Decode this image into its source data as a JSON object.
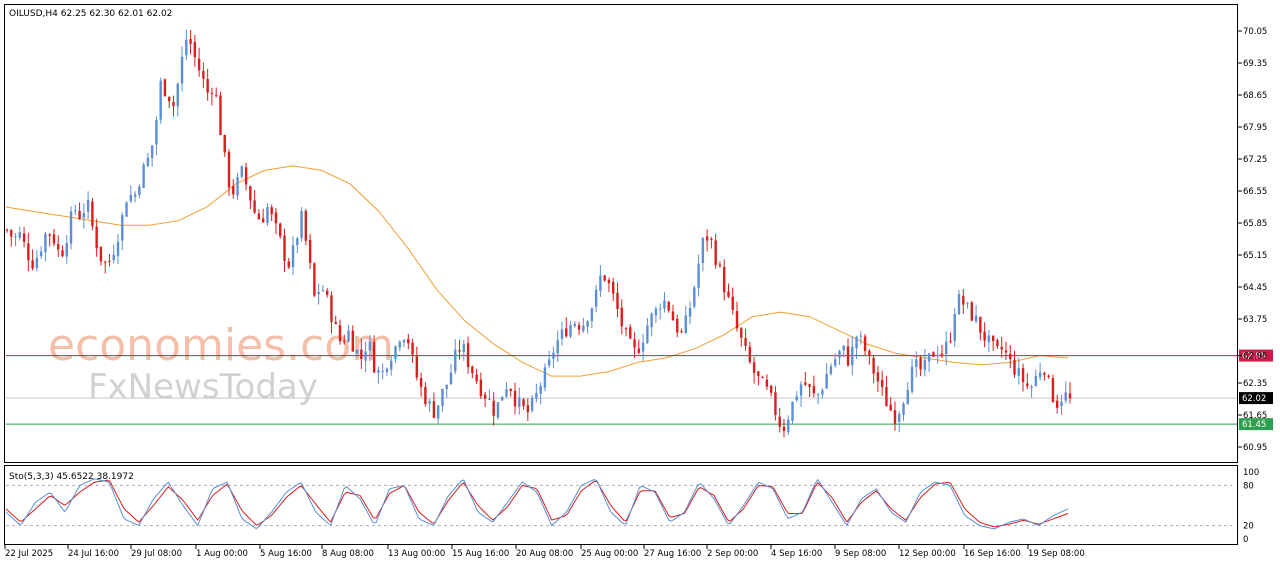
{
  "chart_data": [
    {
      "type": "candlestick",
      "symbol_header": "OILUSD,H4  62.25 62.30 62.01 62.02",
      "watermark_line1": "economies.com",
      "watermark_line2": "FxNewsToday",
      "ylim": [
        60.6,
        70.4
      ],
      "y_ticks": [
        "70.05",
        "69.35",
        "68.65",
        "67.95",
        "67.25",
        "66.55",
        "65.85",
        "65.15",
        "64.45",
        "63.75",
        "62.95",
        "62.35",
        "61.65",
        "60.95"
      ],
      "x_ticks": [
        "22 Jul 2025",
        "24 Jul 16:00",
        "29 Jul 08:00",
        "1 Aug 00:00",
        "5 Aug 16:00",
        "8 Aug 08:00",
        "13 Aug 00:00",
        "15 Aug 16:00",
        "20 Aug 08:00",
        "25 Aug 00:00",
        "27 Aug 16:00",
        "2 Sep 00:00",
        "4 Sep 16:00",
        "9 Sep 08:00",
        "12 Sep 00:00",
        "16 Sep 16:00",
        "19 Sep 08:00"
      ],
      "levels": [
        {
          "label": "62.95",
          "value": 62.95,
          "color": "#cc1a4a"
        },
        {
          "label": "62.02",
          "value": 62.02,
          "color": "#000000"
        },
        {
          "label": "61.45",
          "value": 61.45,
          "color": "#2e9e4f"
        }
      ],
      "up_color": "#5b8fd6",
      "down_color": "#d81e1e",
      "ma_color": "#f0a030",
      "close_path": [
        65.7,
        65.5,
        65.6,
        65.2,
        64.95,
        65.3,
        65.7,
        65.5,
        65.1,
        65.6,
        66.2,
        66.0,
        66.3,
        65.6,
        65.1,
        64.9,
        65.3,
        65.8,
        66.5,
        66.4,
        66.9,
        67.2,
        67.7,
        68.9,
        68.7,
        68.4,
        69.3,
        70.0,
        69.5,
        69.1,
        68.7,
        68.9,
        67.8,
        66.8,
        66.5,
        67.0,
        66.6,
        66.1,
        65.9,
        66.2,
        65.8,
        65.4,
        64.9,
        65.3,
        66.0,
        65.2,
        64.2,
        64.5,
        64.1,
        63.6,
        63.2,
        63.5,
        63.1,
        62.9,
        63.3,
        62.7,
        62.5,
        62.9,
        63.1,
        63.5,
        63.3,
        62.6,
        62.2,
        61.9,
        61.7,
        62.1,
        62.4,
        62.9,
        63.2,
        62.8,
        62.5,
        62.2,
        62.0,
        61.7,
        62.1,
        62.4,
        62.0,
        61.8,
        61.7,
        62.0,
        62.4,
        62.7,
        63.2,
        63.4,
        63.6,
        63.7,
        63.6,
        63.9,
        64.2,
        64.8,
        64.5,
        64.1,
        63.6,
        63.2,
        63.0,
        63.3,
        63.7,
        63.9,
        64.2,
        64.0,
        63.6,
        63.4,
        63.9,
        64.6,
        65.4,
        65.6,
        65.1,
        64.6,
        64.1,
        63.6,
        63.2,
        62.8,
        62.5,
        62.3,
        62.1,
        61.7,
        61.3,
        61.7,
        62.1,
        62.4,
        62.2,
        62.0,
        62.3,
        62.7,
        62.9,
        63.1,
        62.8,
        63.4,
        63.2,
        62.8,
        62.5,
        62.1,
        61.8,
        61.6,
        62.0,
        62.5,
        62.7,
        62.6,
        62.9,
        63.1,
        63.0,
        63.3,
        64.2,
        64.1,
        63.9,
        63.7,
        63.4,
        63.2,
        63.0,
        63.1,
        62.8,
        62.6,
        62.4,
        62.2,
        62.5,
        62.8,
        62.2,
        61.9,
        62.1,
        62.02
      ],
      "ma_path": [
        66.2,
        66.1,
        66.0,
        65.9,
        65.8,
        65.8,
        65.9,
        66.2,
        66.7,
        67.0,
        67.1,
        67.0,
        66.7,
        66.1,
        65.3,
        64.4,
        63.7,
        63.2,
        62.8,
        62.5,
        62.5,
        62.6,
        62.8,
        62.9,
        63.1,
        63.4,
        63.8,
        63.9,
        63.8,
        63.5,
        63.2,
        63.0,
        62.9,
        62.8,
        62.75,
        62.8,
        62.95,
        62.9
      ],
      "stochastic": {
        "label": "Sto(5,3,3) 45.6522 38.1972",
        "ylim": [
          0,
          100
        ],
        "ticks": [
          "100",
          "80",
          "20",
          "0"
        ],
        "levels": [
          80,
          20
        ],
        "main_color": "#5b8fd6",
        "signal_color": "#d81e1e",
        "main_path": [
          40,
          20,
          55,
          70,
          40,
          80,
          90,
          85,
          30,
          20,
          60,
          85,
          50,
          20,
          75,
          85,
          30,
          15,
          40,
          70,
          85,
          40,
          20,
          80,
          60,
          20,
          75,
          80,
          30,
          20,
          65,
          90,
          40,
          25,
          55,
          85,
          70,
          20,
          40,
          80,
          90,
          40,
          20,
          80,
          70,
          25,
          40,
          85,
          60,
          20,
          50,
          85,
          75,
          30,
          40,
          90,
          55,
          20,
          60,
          75,
          40,
          25,
          70,
          85,
          80,
          35,
          20,
          15,
          25,
          30,
          20,
          35,
          45
        ],
        "signal_path": [
          45,
          25,
          45,
          65,
          50,
          70,
          85,
          88,
          45,
          25,
          50,
          78,
          58,
          28,
          65,
          82,
          42,
          20,
          35,
          62,
          80,
          52,
          25,
          70,
          65,
          28,
          68,
          80,
          40,
          22,
          58,
          85,
          50,
          28,
          48,
          80,
          75,
          28,
          35,
          72,
          88,
          50,
          25,
          72,
          72,
          32,
          38,
          78,
          65,
          25,
          45,
          80,
          78,
          38,
          38,
          85,
          62,
          25,
          55,
          72,
          45,
          28,
          62,
          82,
          85,
          45,
          25,
          18,
          22,
          28,
          22,
          30,
          38
        ]
      }
    }
  ]
}
